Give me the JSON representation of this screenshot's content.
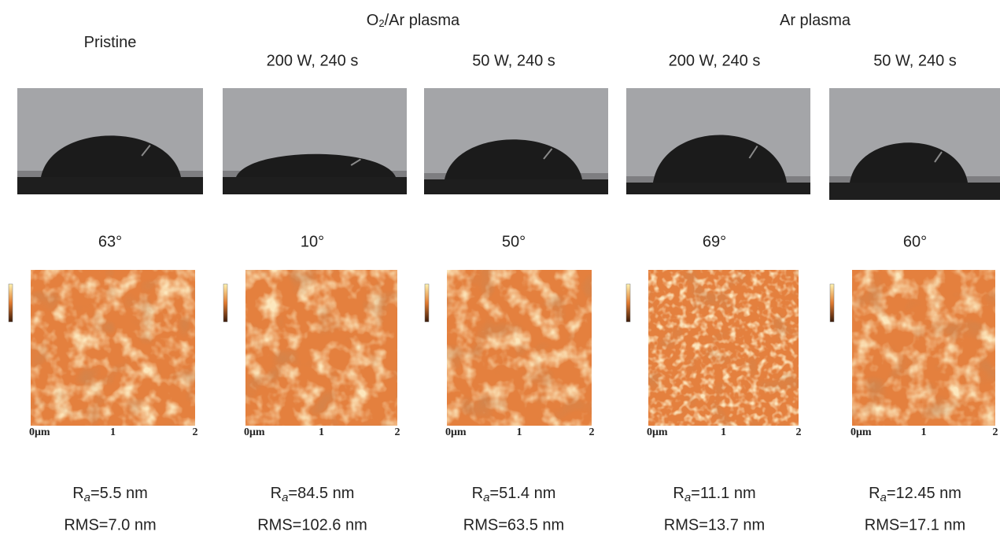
{
  "groups": [
    {
      "label_parts": [
        "Pristine"
      ]
    },
    {
      "label_parts": [
        "O",
        "2",
        "/Ar plasma"
      ]
    },
    {
      "label_parts": [
        "Ar plasma"
      ]
    }
  ],
  "ra_symbol": "R",
  "ra_subscript": "a",
  "axis": {
    "start": "0μm",
    "mid": "1",
    "end": "2"
  },
  "columns": [
    {
      "condition": null,
      "angle": "63°",
      "ra": "=5.5 nm",
      "rms": "RMS=7.0 nm"
    },
    {
      "condition": "200 W, 240 s",
      "angle": "10°",
      "ra": "=84.5 nm",
      "rms": "RMS=102.6 nm"
    },
    {
      "condition": "50 W, 240 s",
      "angle": "50°",
      "ra": "=51.4 nm",
      "rms": "RMS=63.5 nm"
    },
    {
      "condition": "200 W, 240 s",
      "angle": "69°",
      "ra": "=11.1 nm",
      "rms": "RMS=13.7 nm"
    },
    {
      "condition": "50 W, 240 s",
      "angle": "60°",
      "ra": "=12.45 nm",
      "rms": "RMS=17.1 nm"
    }
  ]
}
